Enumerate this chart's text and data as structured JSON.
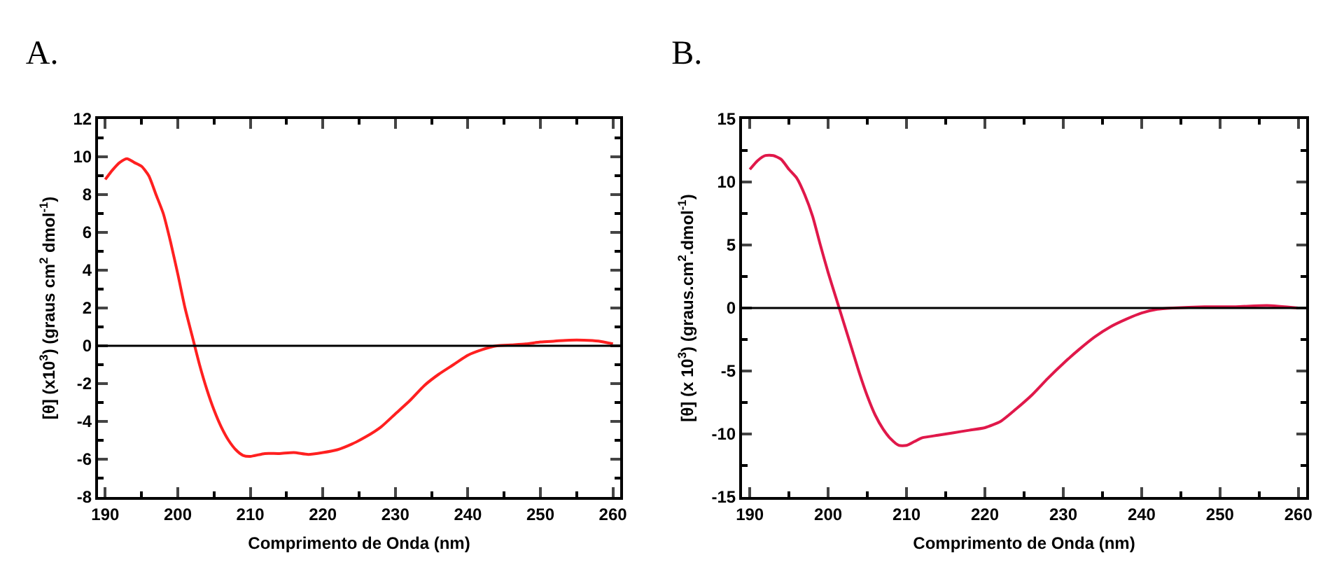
{
  "chart_data": [
    {
      "type": "line",
      "title": "A.",
      "xlabel": "Comprimento de Onda (nm)",
      "ylabel": "[θ] (x10$^{3}$) (graus cm$^{2}$ dmol$^{-1}$)",
      "x": [
        190,
        191,
        192,
        193,
        194,
        195,
        196,
        197,
        198,
        199,
        200,
        201,
        202,
        203,
        204,
        205,
        206,
        207,
        208,
        209,
        210,
        212,
        214,
        216,
        218,
        220,
        222,
        224,
        226,
        228,
        230,
        232,
        234,
        236,
        238,
        240,
        242,
        244,
        246,
        248,
        250,
        252,
        254,
        256,
        258,
        260
      ],
      "series": [
        {
          "color": "#ff2020",
          "values": [
            8.8,
            9.3,
            9.7,
            9.9,
            9.7,
            9.5,
            9.0,
            8.0,
            7.0,
            5.5,
            3.8,
            2.0,
            0.5,
            -1.0,
            -2.3,
            -3.4,
            -4.3,
            -5.0,
            -5.5,
            -5.8,
            -5.85,
            -5.7,
            -5.7,
            -5.65,
            -5.75,
            -5.65,
            -5.5,
            -5.2,
            -4.8,
            -4.3,
            -3.6,
            -2.9,
            -2.1,
            -1.5,
            -1.0,
            -0.5,
            -0.2,
            0,
            0.05,
            0.1,
            0.2,
            0.25,
            0.3,
            0.3,
            0.25,
            0.1
          ]
        }
      ],
      "xlim": [
        189,
        261
      ],
      "xticks": [
        190,
        200,
        210,
        220,
        230,
        240,
        250,
        260
      ],
      "ylim": [
        -8,
        12
      ],
      "yticks": [
        -8,
        -6,
        -4,
        -2,
        0,
        2,
        4,
        6,
        8,
        10,
        12
      ],
      "ref_lines": [
        {
          "axis": "y",
          "value": 0,
          "color": "#000000"
        }
      ]
    },
    {
      "type": "line",
      "title": "B.",
      "xlabel": "Comprimento de Onda (nm)",
      "ylabel": "[θ] (x 10$^{3}$) (graus.cm$^{2}$.dmol$^{-1}$)",
      "x": [
        190,
        191,
        192,
        193,
        194,
        195,
        196,
        197,
        198,
        199,
        200,
        201,
        202,
        203,
        204,
        205,
        206,
        207,
        208,
        209,
        210,
        211,
        212,
        214,
        216,
        218,
        220,
        222,
        224,
        226,
        228,
        230,
        232,
        234,
        236,
        238,
        240,
        242,
        244,
        248,
        252,
        256,
        260
      ],
      "series": [
        {
          "color": "#e0184a",
          "values": [
            11,
            11.7,
            12.1,
            12.1,
            11.8,
            11.0,
            10.3,
            9.0,
            7.3,
            5.0,
            2.8,
            0.8,
            -1.2,
            -3.2,
            -5.2,
            -7,
            -8.5,
            -9.6,
            -10.4,
            -10.9,
            -10.9,
            -10.6,
            -10.3,
            -10.1,
            -9.9,
            -9.7,
            -9.5,
            -9.0,
            -8.0,
            -6.9,
            -5.6,
            -4.4,
            -3.3,
            -2.3,
            -1.5,
            -0.9,
            -0.4,
            -0.1,
            0,
            0.1,
            0.1,
            0.2,
            0
          ]
        }
      ],
      "xlim": [
        189,
        261
      ],
      "xticks": [
        190,
        200,
        210,
        220,
        230,
        240,
        250,
        260
      ],
      "ylim": [
        -15,
        15
      ],
      "yticks": [
        -15,
        -10,
        -5,
        0,
        5,
        10,
        15
      ],
      "ref_lines": [
        {
          "axis": "y",
          "value": 0,
          "color": "#000000"
        }
      ]
    }
  ]
}
